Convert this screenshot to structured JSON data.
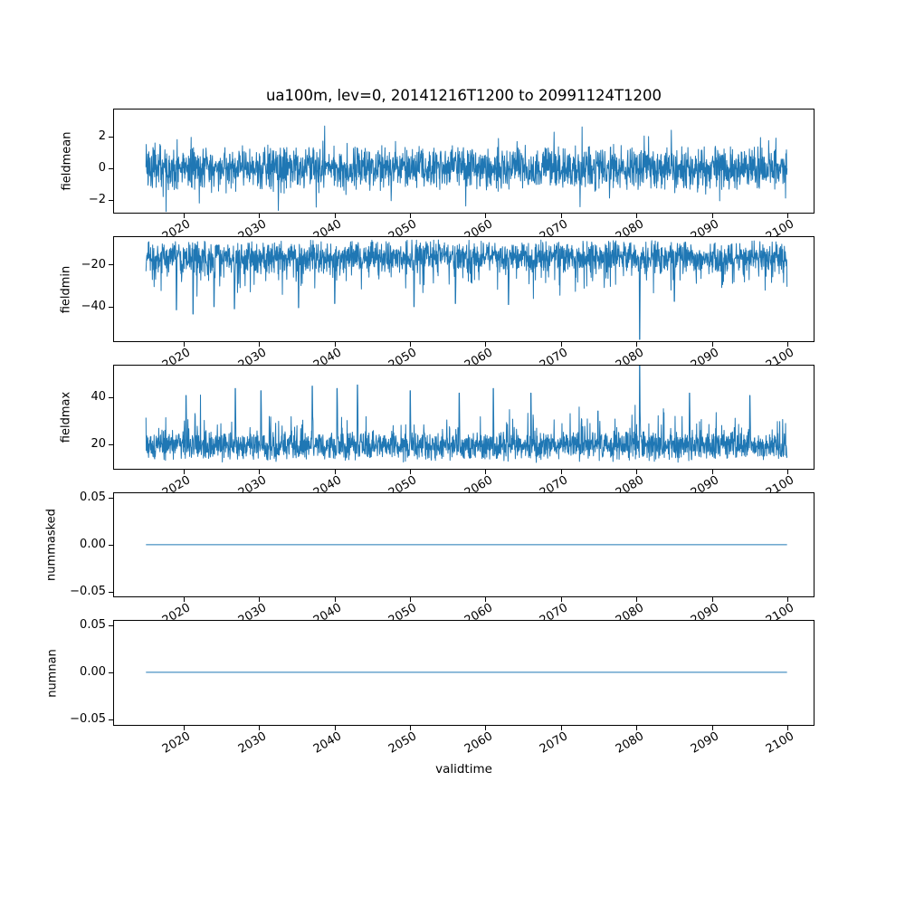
{
  "figure": {
    "title": "ua100m, lev=0, 20141216T1200 to 20991124T1200",
    "xlabel": "validtime",
    "background_color": "#ffffff",
    "axis_color": "#000000"
  },
  "chart_data": {
    "type": "line",
    "title": "ua100m, lev=0, 20141216T1200 to 20991124T1200",
    "xlabel": "validtime",
    "line_color": "#1f77b4",
    "grid": false,
    "legend": "none",
    "x_data_range_years": [
      2014.96,
      2099.9
    ],
    "xlim": [
      2010.73,
      2103.66
    ],
    "xticks": [
      2020,
      2030,
      2040,
      2050,
      2060,
      2070,
      2080,
      2090,
      2100
    ],
    "xtick_labels": [
      "2020",
      "2030",
      "2040",
      "2050",
      "2060",
      "2070",
      "2080",
      "2090",
      "2100"
    ],
    "xtick_rotation_deg": 30,
    "subplots": [
      {
        "name": "fieldmean",
        "ylabel": "fieldmean",
        "ylim": [
          -2.93,
          3.714
        ],
        "yticks": [
          {
            "value": 2,
            "label": "2"
          },
          {
            "value": 0,
            "label": "0"
          },
          {
            "value": -2,
            "label": "−2"
          }
        ],
        "summary": "dense high-frequency noise centred on 0, typical band ±1.6, extremes about ±3.2",
        "series": {
          "gen": "noise",
          "seed": 11,
          "mean": 0,
          "halfband": 1.55,
          "dir": "both",
          "spike_prob": 0.1,
          "spike_extra": 1.7,
          "spike2_prob": 0.012,
          "spike2_extra": 1.0,
          "clamp": [
            -3.05,
            3.5
          ],
          "anomalies": []
        }
      },
      {
        "name": "fieldmin",
        "ylabel": "fieldmin",
        "ylim": [
          -56.8,
          -6.98
        ],
        "yticks": [
          {
            "value": -20,
            "label": "−20"
          },
          {
            "value": -40,
            "label": "−40"
          }
        ],
        "summary": "noise band -9 to -26 with frequent downward spikes to -35..-45 and one extreme dip to about -55 near 2080",
        "series": {
          "gen": "noise",
          "seed": 23,
          "mean": -16.2,
          "halfband": 8.3,
          "dir": "down",
          "spike_prob": 0.12,
          "spike_extra": 13,
          "spike2_prob": 0.015,
          "spike2_extra": 9,
          "clamp": [
            -47.5,
            -8.1
          ],
          "anomalies": [
            [
              2019.0,
              -41.5
            ],
            [
              2021.2,
              -43.5
            ],
            [
              2024.0,
              -40.0
            ],
            [
              2026.7,
              -41.0
            ],
            [
              2035.2,
              -40.5
            ],
            [
              2040.0,
              -38.5
            ],
            [
              2050.5,
              -40.0
            ],
            [
              2056.0,
              -38.5
            ],
            [
              2063.0,
              -39.0
            ],
            [
              2080.4,
              -55.5
            ],
            [
              2085.0,
              -37.5
            ]
          ]
        }
      },
      {
        "name": "fieldmax",
        "ylabel": "fieldmax",
        "ylim": [
          8.8,
          53.77
        ],
        "yticks": [
          {
            "value": 40,
            "label": "40"
          },
          {
            "value": 20,
            "label": "20"
          }
        ],
        "summary": "noise band 12 to 27 with frequent upward spikes to 30..45 and one extreme peak to about 54 near 2080",
        "series": {
          "gen": "noise",
          "seed": 37,
          "mean": 19.0,
          "halfband": 7.0,
          "dir": "up",
          "spike_prob": 0.12,
          "spike_extra": 12,
          "spike2_prob": 0.015,
          "spike2_extra": 8,
          "clamp": [
            10.8,
            45.5
          ],
          "anomalies": [
            [
              2020.3,
              41.0
            ],
            [
              2026.8,
              44.0
            ],
            [
              2030.2,
              43.0
            ],
            [
              2037.0,
              45.0
            ],
            [
              2040.3,
              44.0
            ],
            [
              2043.0,
              45.5
            ],
            [
              2050.0,
              43.0
            ],
            [
              2056.5,
              42.0
            ],
            [
              2061.0,
              44.0
            ],
            [
              2066.0,
              42.0
            ],
            [
              2080.4,
              53.7
            ],
            [
              2087.0,
              42.0
            ],
            [
              2095.0,
              41.0
            ]
          ]
        }
      },
      {
        "name": "nummasked",
        "ylabel": "nummasked",
        "ylim": [
          -0.0571,
          0.0549
        ],
        "yticks": [
          {
            "value": 0.05,
            "label": "0.05"
          },
          {
            "value": 0.0,
            "label": "0.00"
          },
          {
            "value": -0.05,
            "label": "−0.05"
          }
        ],
        "summary": "constant 0 for the whole period",
        "series": {
          "gen": "const",
          "value": 0,
          "anomalies": []
        }
      },
      {
        "name": "numnan",
        "ylabel": "numnan",
        "ylim": [
          -0.0571,
          0.0549
        ],
        "yticks": [
          {
            "value": 0.05,
            "label": "0.05"
          },
          {
            "value": 0.0,
            "label": "0.00"
          },
          {
            "value": -0.05,
            "label": "−0.05"
          }
        ],
        "summary": "constant 0 for the whole period",
        "series": {
          "gen": "const",
          "value": 0,
          "anomalies": []
        }
      }
    ]
  }
}
